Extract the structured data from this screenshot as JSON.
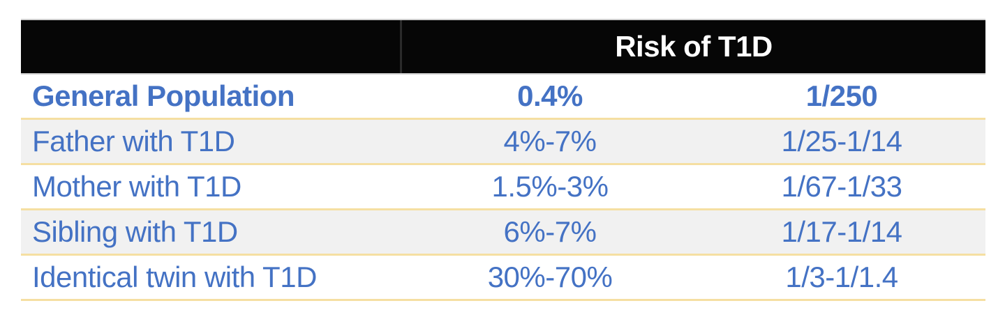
{
  "chart_data": {
    "type": "table",
    "title": "Risk of T1D",
    "header": {
      "blank_label": "",
      "risk_label": "Risk of T1D"
    },
    "columns": [
      "group",
      "risk_percent",
      "risk_fraction"
    ],
    "rows": [
      {
        "label": "General Population",
        "percent": "0.4%",
        "fraction": "1/250",
        "emphasis": true,
        "striped": false
      },
      {
        "label": "Father with T1D",
        "percent": "4%-7%",
        "fraction": "1/25-1/14",
        "emphasis": false,
        "striped": true
      },
      {
        "label": "Mother with T1D",
        "percent": "1.5%-3%",
        "fraction": "1/67-1/33",
        "emphasis": false,
        "striped": false
      },
      {
        "label": "Sibling with T1D",
        "percent": "6%-7%",
        "fraction": "1/17-1/14",
        "emphasis": false,
        "striped": true
      },
      {
        "label": "Identical twin with T1D",
        "percent": "30%-70%",
        "fraction": "1/3-1/1.4",
        "emphasis": false,
        "striped": false
      }
    ],
    "layout": {
      "legend_position": "none",
      "grid": "horizontal-gold-separators",
      "row_striping": "alternate"
    }
  },
  "colors": {
    "header_bg": "#060606",
    "header_text": "#ffffff",
    "header_divider": "#2a2a2a",
    "header_edge": "#cfcfcf",
    "body_text_blue": "#4472c4",
    "row_separator_gold": "#f5dfa2",
    "stripe_gray": "#f1f1f1",
    "page_bg": "#ffffff"
  }
}
